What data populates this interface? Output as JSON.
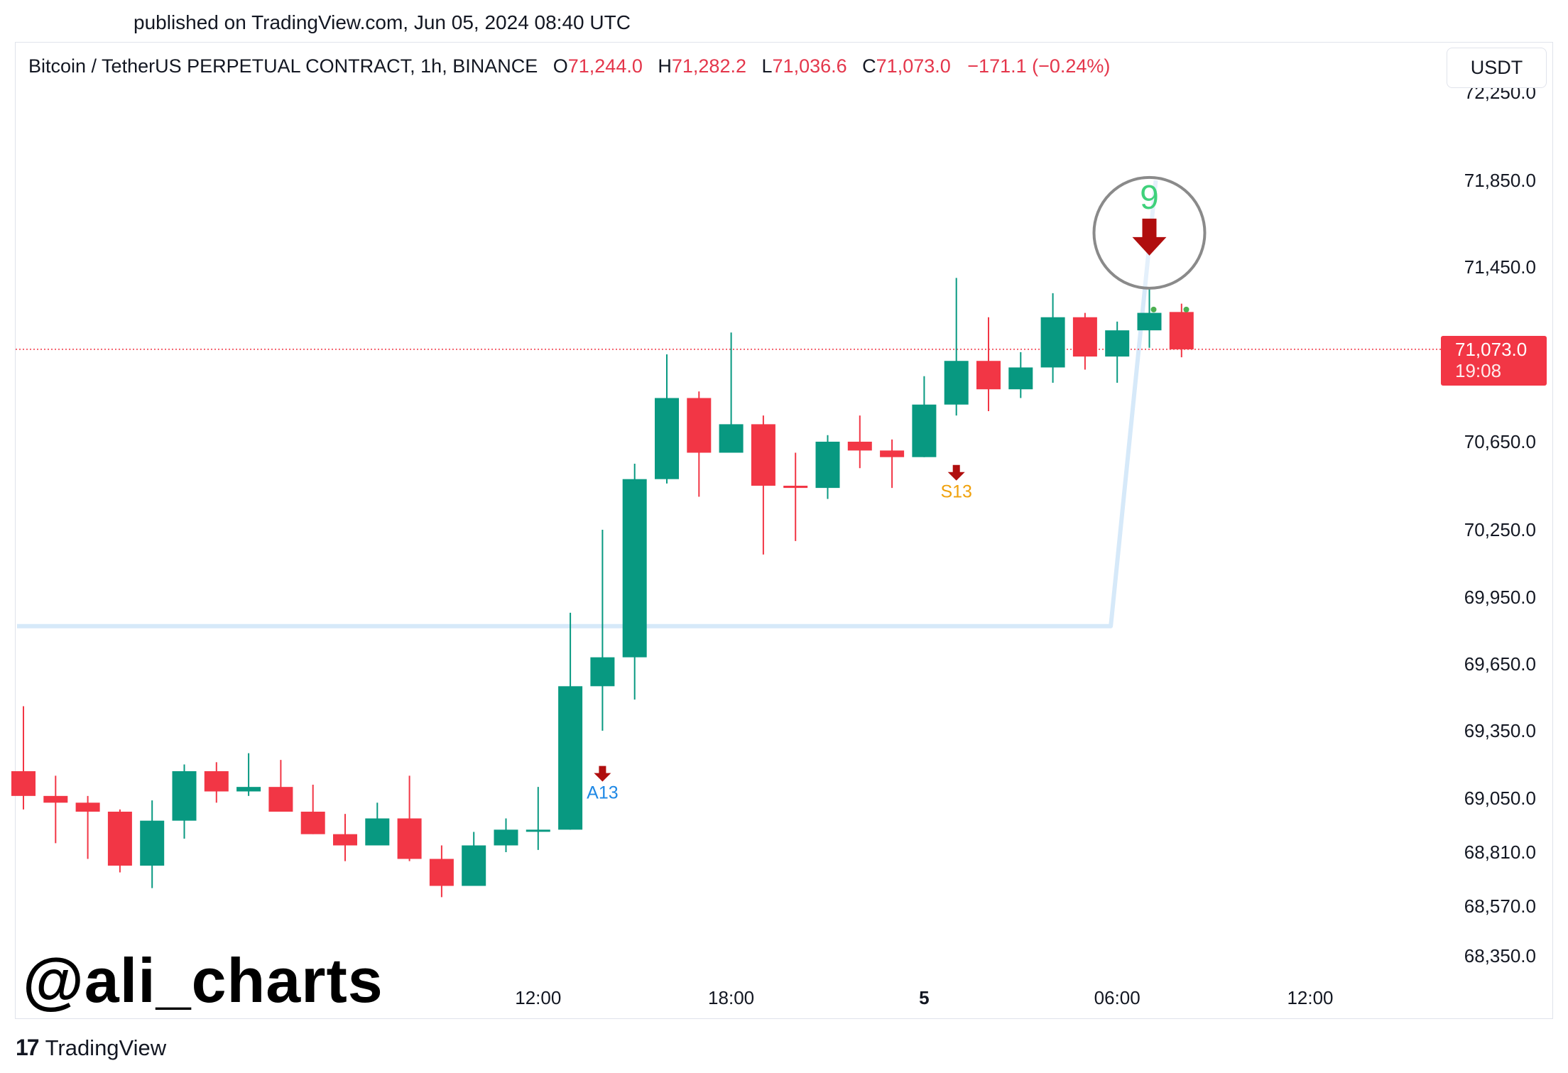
{
  "header": {
    "published": "published on TradingView.com, Jun 05, 2024 08:40 UTC"
  },
  "legend": {
    "symbol": "Bitcoin / TetherUS PERPETUAL CONTRACT, 1h, BINANCE",
    "open_label": "O",
    "open": "71,244.0",
    "high_label": "H",
    "high": "71,282.2",
    "low_label": "L",
    "low": "71,036.6",
    "close_label": "C",
    "close": "71,073.0",
    "change": "−171.1 (−0.24%)"
  },
  "toolbar": {
    "currency": "USDT"
  },
  "price_tag": {
    "price": "71,073.0",
    "countdown": "19:08"
  },
  "watermark": "@ali_charts",
  "footer": {
    "logo_mark": "17",
    "logo_text": "TradingView"
  },
  "colors": {
    "up": "#089981",
    "down": "#f23645",
    "line": "#d6e9f9",
    "signal": "#b00e0e"
  },
  "chart_data": {
    "type": "candlestick",
    "title": "",
    "xlabel": "",
    "ylabel": "",
    "grid": false,
    "y_ticks": [
      "72,250.0",
      "71,850.0",
      "71,450.0",
      "70,650.0",
      "70,250.0",
      "69,950.0",
      "69,650.0",
      "69,350.0",
      "69,050.0",
      "68,810.0",
      "68,570.0",
      "68,350.0"
    ],
    "y_tick_values": [
      72250,
      71850,
      71450,
      70650,
      70250,
      69950,
      69650,
      69350,
      69050,
      68810,
      68570,
      68350
    ],
    "x_ticks": [
      {
        "label": "12:00",
        "bar": 16
      },
      {
        "label": "18:00",
        "bar": 22
      },
      {
        "label": "5",
        "bar": 28,
        "bold": true
      },
      {
        "label": "06:00",
        "bar": 34
      },
      {
        "label": "12:00",
        "bar": 40
      }
    ],
    "candles": [
      {
        "o": 69170,
        "h": 69460,
        "l": 69000,
        "c": 69060
      },
      {
        "o": 69060,
        "h": 69150,
        "l": 68850,
        "c": 69030
      },
      {
        "o": 69030,
        "h": 69060,
        "l": 68780,
        "c": 68990
      },
      {
        "o": 68990,
        "h": 69000,
        "l": 68720,
        "c": 68750
      },
      {
        "o": 68750,
        "h": 69040,
        "l": 68650,
        "c": 68950
      },
      {
        "o": 68950,
        "h": 69200,
        "l": 68870,
        "c": 69170
      },
      {
        "o": 69170,
        "h": 69210,
        "l": 69030,
        "c": 69080
      },
      {
        "o": 69080,
        "h": 69250,
        "l": 69060,
        "c": 69100
      },
      {
        "o": 69100,
        "h": 69220,
        "l": 68990,
        "c": 68990
      },
      {
        "o": 68990,
        "h": 69110,
        "l": 68890,
        "c": 68890
      },
      {
        "o": 68890,
        "h": 68980,
        "l": 68770,
        "c": 68840
      },
      {
        "o": 68840,
        "h": 69030,
        "l": 68840,
        "c": 68960
      },
      {
        "o": 68960,
        "h": 69150,
        "l": 68770,
        "c": 68780
      },
      {
        "o": 68780,
        "h": 68840,
        "l": 68610,
        "c": 68660
      },
      {
        "o": 68660,
        "h": 68900,
        "l": 68660,
        "c": 68840
      },
      {
        "o": 68840,
        "h": 68960,
        "l": 68810,
        "c": 68910
      },
      {
        "o": 68910,
        "h": 69100,
        "l": 68820,
        "c": 68910
      },
      {
        "o": 68910,
        "h": 69880,
        "l": 68910,
        "c": 69550
      },
      {
        "o": 69550,
        "h": 70250,
        "l": 69350,
        "c": 69680
      },
      {
        "o": 69680,
        "h": 70550,
        "l": 69490,
        "c": 70480
      },
      {
        "o": 70480,
        "h": 71050,
        "l": 70460,
        "c": 70850
      },
      {
        "o": 70850,
        "h": 70880,
        "l": 70400,
        "c": 70600
      },
      {
        "o": 70600,
        "h": 71150,
        "l": 70600,
        "c": 70730
      },
      {
        "o": 70730,
        "h": 70770,
        "l": 70140,
        "c": 70450
      },
      {
        "o": 70450,
        "h": 70600,
        "l": 70200,
        "c": 70440
      },
      {
        "o": 70440,
        "h": 70680,
        "l": 70390,
        "c": 70650
      },
      {
        "o": 70650,
        "h": 70770,
        "l": 70530,
        "c": 70610
      },
      {
        "o": 70610,
        "h": 70660,
        "l": 70440,
        "c": 70580
      },
      {
        "o": 70580,
        "h": 70950,
        "l": 70580,
        "c": 70820
      },
      {
        "o": 70820,
        "h": 71400,
        "l": 70770,
        "c": 71020
      },
      {
        "o": 71020,
        "h": 71220,
        "l": 70790,
        "c": 70890
      },
      {
        "o": 70890,
        "h": 71060,
        "l": 70850,
        "c": 70990
      },
      {
        "o": 70990,
        "h": 71330,
        "l": 70920,
        "c": 71220
      },
      {
        "o": 71220,
        "h": 71240,
        "l": 70980,
        "c": 71040
      },
      {
        "o": 71040,
        "h": 71200,
        "l": 70920,
        "c": 71160
      },
      {
        "o": 71160,
        "h": 71350,
        "l": 71080,
        "c": 71240
      },
      {
        "o": 71244,
        "h": 71282.2,
        "l": 71036.6,
        "c": 71073
      }
    ],
    "trend_line": [
      {
        "bar": -0.2,
        "y": 69820
      },
      {
        "bar": 33.8,
        "y": 69820
      },
      {
        "bar": 35.2,
        "y": 71850
      }
    ],
    "annotations": [
      {
        "text": "A13",
        "bar": 18,
        "y": 69130,
        "color": "#1e88e5",
        "arrow": true
      },
      {
        "text": "S13",
        "bar": 29,
        "y": 70480,
        "color": "#f0a10c",
        "arrow": true
      },
      {
        "text": "9",
        "bar": 35,
        "y": 71575,
        "color": "#3fd17b",
        "arrow": true,
        "circled": true
      }
    ],
    "last_price": 71073
  }
}
